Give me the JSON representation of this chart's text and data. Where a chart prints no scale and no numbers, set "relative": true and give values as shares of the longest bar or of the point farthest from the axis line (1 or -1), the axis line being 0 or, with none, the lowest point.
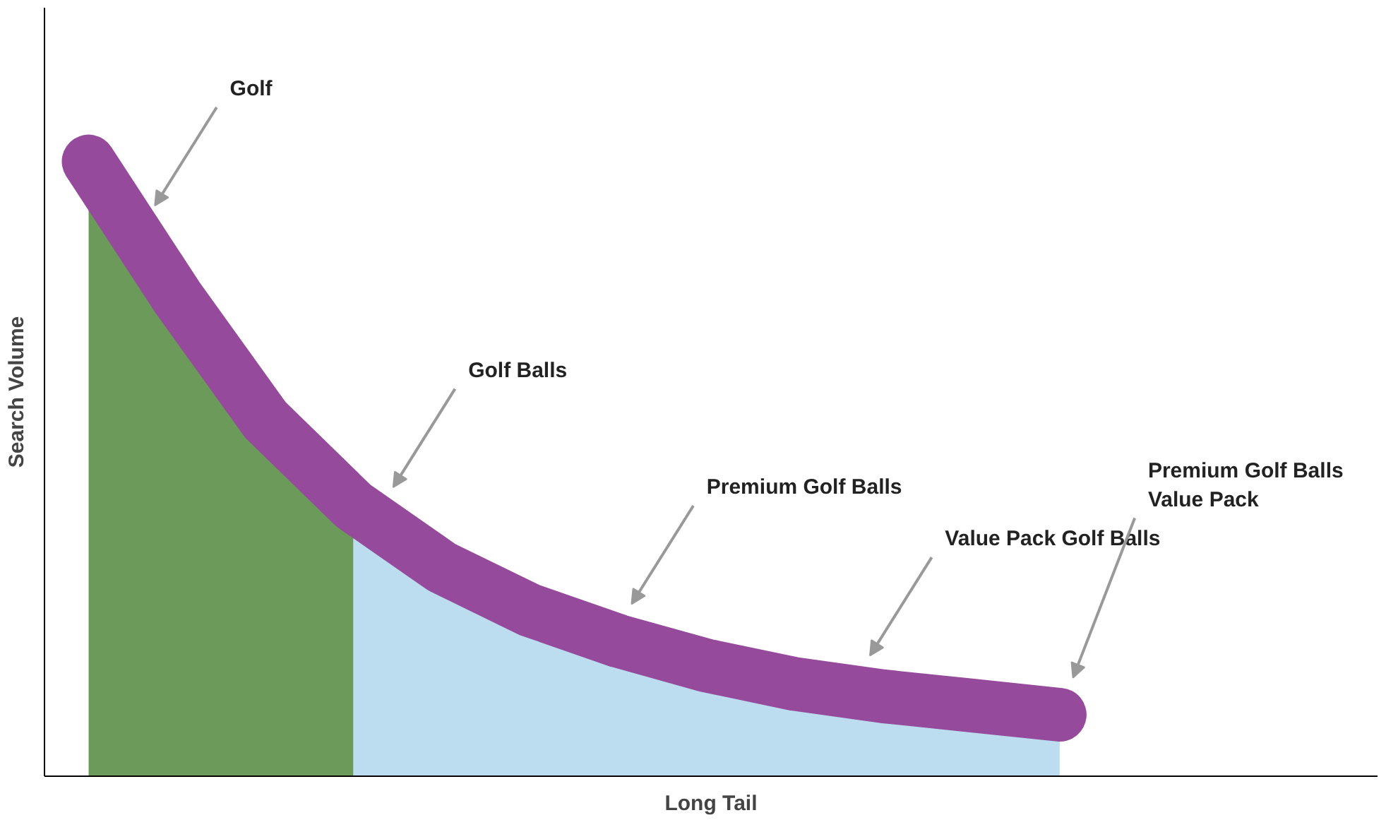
{
  "chart_data": {
    "type": "area",
    "relative": true,
    "xlabel": "Long Tail",
    "ylabel": "Search Volume",
    "categories": [
      null,
      null,
      null,
      null,
      null,
      null,
      null,
      null,
      null,
      null,
      null,
      null
    ],
    "series": [
      {
        "color": "#6b9a5b",
        "values": [
          1,
          0.78,
          0.58,
          0.44,
          null,
          null,
          null,
          null,
          null,
          null,
          null,
          null
        ]
      },
      {
        "color": "#bcdcef",
        "values": [
          null,
          null,
          null,
          0.44,
          0.34,
          0.27,
          0.22,
          0.18,
          0.15,
          0.13,
          0.115,
          0.1
        ]
      },
      {
        "type": "line",
        "color": "#964a9b",
        "values": [
          1,
          0.78,
          0.58,
          0.44,
          0.34,
          0.27,
          0.22,
          0.18,
          0.15,
          0.13,
          0.115,
          0.1
        ]
      }
    ],
    "annotations": [
      "Golf",
      "Golf Balls",
      "Premium Golf Balls",
      "Value Pack Golf Balls",
      "Premium Golf Balls\nValue Pack"
    ],
    "grid": false
  }
}
